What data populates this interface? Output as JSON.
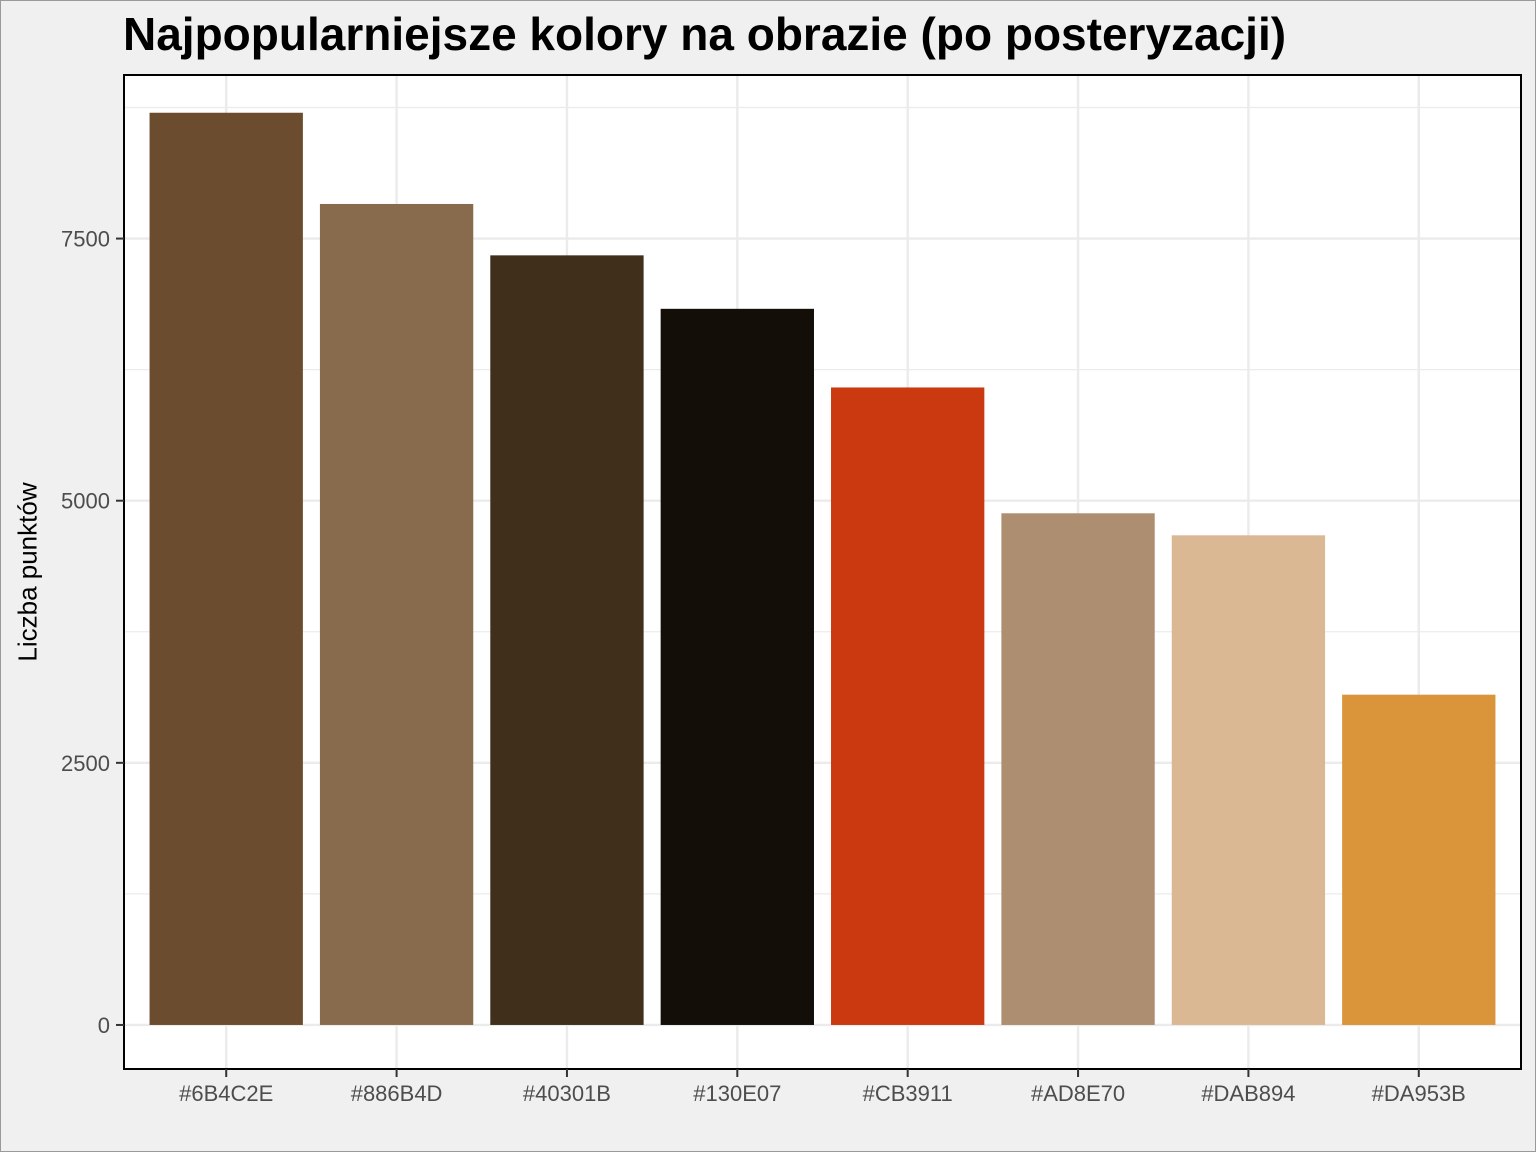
{
  "chart_data": {
    "type": "bar",
    "title": "Najpopularniejsze kolory na obrazie (po posteryzacji)",
    "xlabel": "",
    "ylabel": "Liczba punktów",
    "categories": [
      "#6B4C2E",
      "#886B4D",
      "#40301B",
      "#130E07",
      "#CB3911",
      "#AD8E70",
      "#DAB894",
      "#DA953B"
    ],
    "values": [
      8700,
      7830,
      7340,
      6830,
      6080,
      4880,
      4670,
      3150
    ],
    "colors": [
      "#6B4C2E",
      "#886B4D",
      "#40301B",
      "#130E07",
      "#CB3911",
      "#AD8E70",
      "#DAB894",
      "#DA953B"
    ],
    "y_ticks": [
      0,
      2500,
      5000,
      7500
    ],
    "y_tick_labels": [
      "0",
      "2500",
      "5000",
      "7500"
    ],
    "ylim": [
      -420,
      9060
    ],
    "grid": true,
    "legend": "none"
  }
}
